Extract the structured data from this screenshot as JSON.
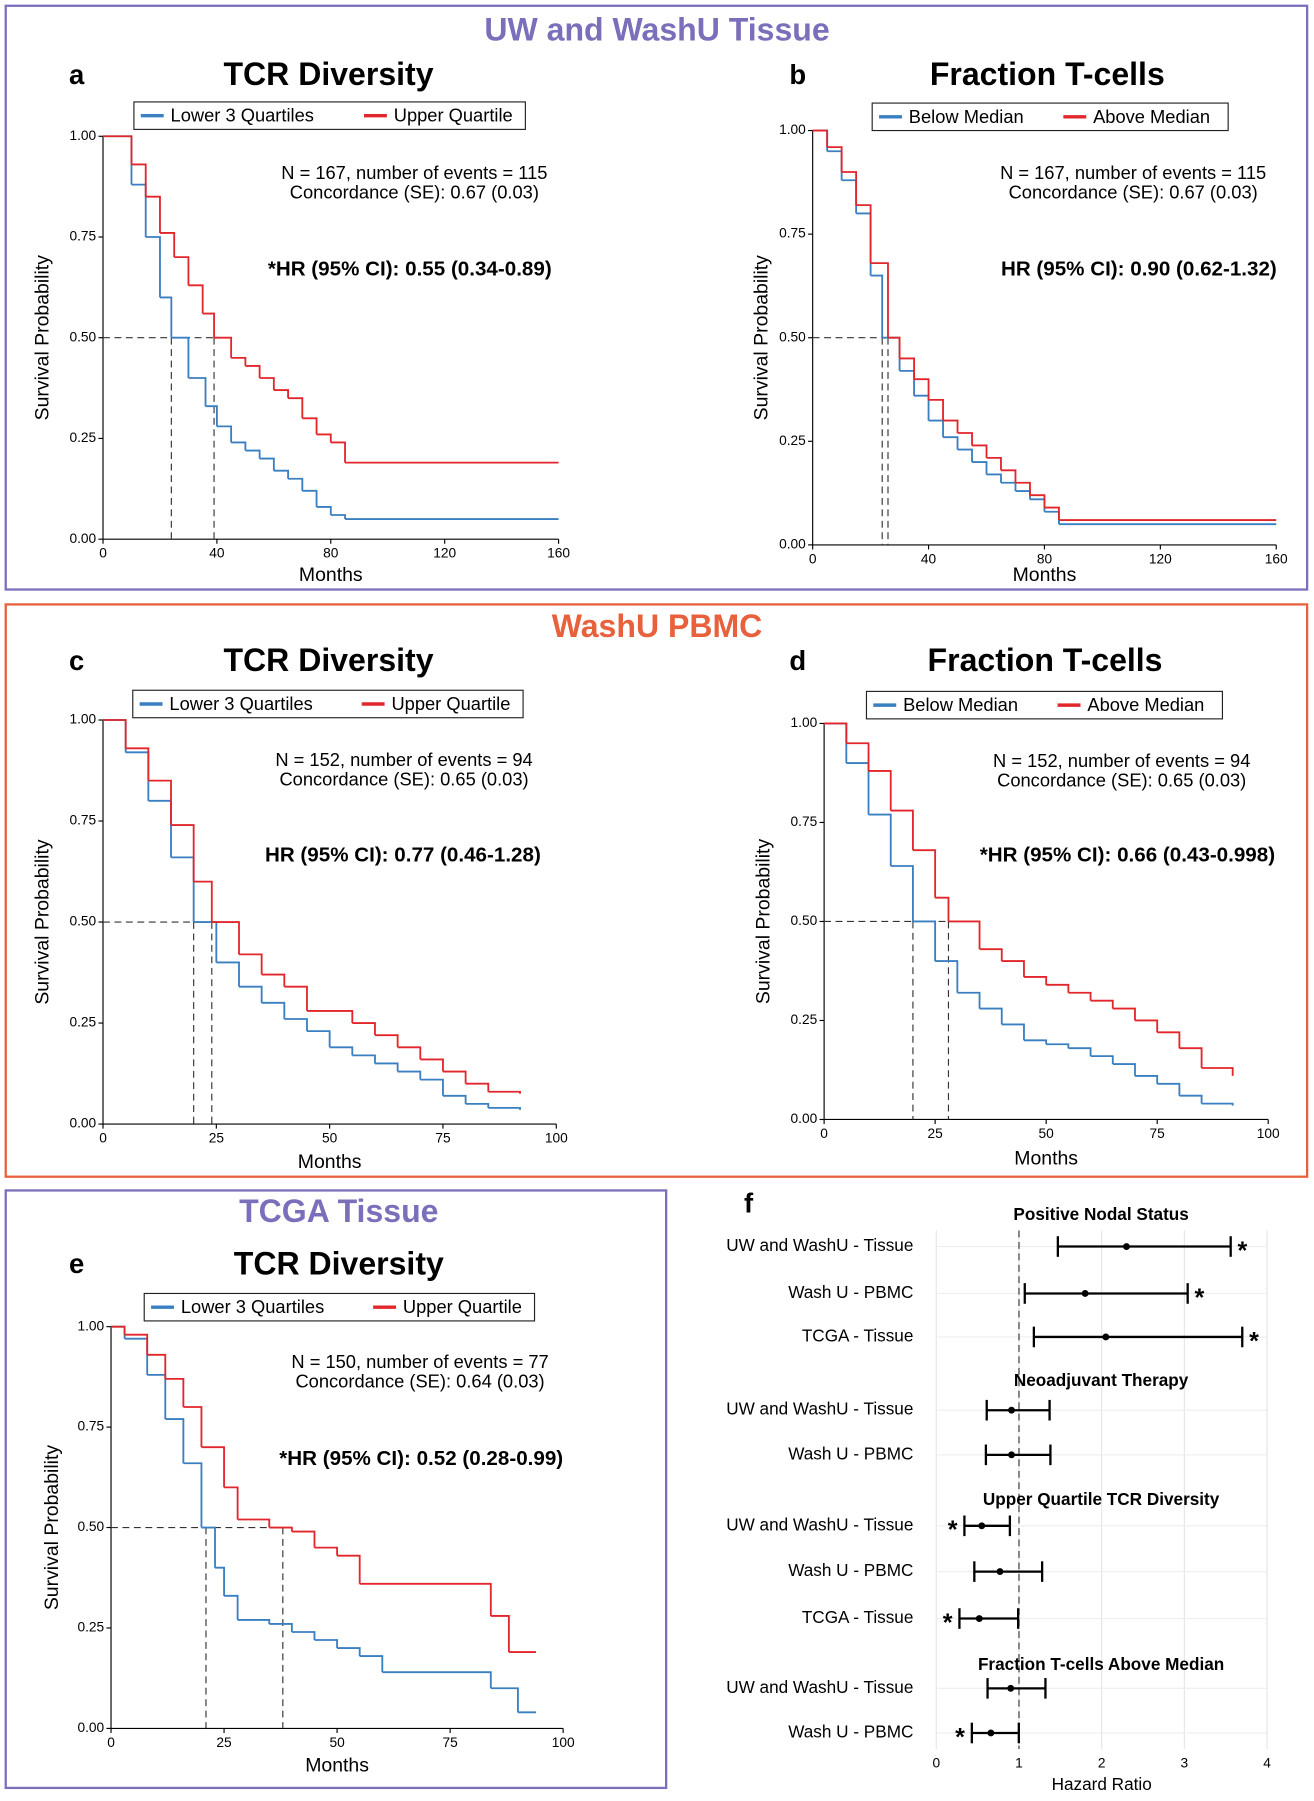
{
  "sections": [
    {
      "title": "UW and WashU Tissue",
      "color": "#7a6fba"
    },
    {
      "title": "WashU PBMC",
      "color": "#e8603c"
    },
    {
      "title": "TCGA Tissue",
      "color": "#7a6fba"
    }
  ],
  "chart_data": [
    {
      "type": "step",
      "panel": "a",
      "title": "TCR Diversity",
      "xlabel": "Months",
      "ylabel": "Survival Probability",
      "annotations": [
        "N = 167, number of events = 115",
        "Concordance (SE): 0.67 (0.03)"
      ],
      "hr_text": "*HR (95% CI): 0.55 (0.34-0.89)",
      "xlim": [
        0,
        160
      ],
      "ylim": [
        0,
        1
      ],
      "xticks": [
        0,
        40,
        80,
        120,
        160
      ],
      "yticks": [
        {
          "value": 0,
          "label": "0.00"
        },
        {
          "value": 0.25,
          "label": "0.25"
        },
        {
          "value": 0.5,
          "label": "0.50"
        },
        {
          "value": 0.75,
          "label": "0.75"
        },
        {
          "value": 1,
          "label": "1.00"
        }
      ],
      "median_level": 0.5,
      "series": [
        {
          "name": "Lower 3 Quartiles",
          "color": "#3a7fc1",
          "median": 24,
          "x": [
            0,
            10,
            15,
            20,
            24,
            30,
            36,
            40,
            45,
            50,
            55,
            60,
            65,
            70,
            75,
            80,
            85,
            160
          ],
          "values": [
            1,
            0.88,
            0.75,
            0.6,
            0.5,
            0.4,
            0.33,
            0.28,
            0.24,
            0.22,
            0.2,
            0.17,
            0.15,
            0.12,
            0.08,
            0.06,
            0.05,
            0.05
          ]
        },
        {
          "name": "Upper Quartile",
          "color": "#e3262b",
          "median": 39,
          "x": [
            0,
            10,
            15,
            20,
            25,
            30,
            35,
            39,
            45,
            50,
            55,
            60,
            65,
            70,
            75,
            80,
            85,
            160
          ],
          "values": [
            1,
            0.93,
            0.85,
            0.76,
            0.7,
            0.63,
            0.56,
            0.5,
            0.45,
            0.43,
            0.4,
            0.37,
            0.35,
            0.3,
            0.26,
            0.24,
            0.19,
            0.19
          ]
        }
      ]
    },
    {
      "type": "step",
      "panel": "b",
      "title": "Fraction T-cells",
      "xlabel": "Months",
      "ylabel": "Survival Probability",
      "annotations": [
        "N = 167, number of events = 115",
        "Concordance (SE): 0.67 (0.03)"
      ],
      "hr_text": "HR (95% CI): 0.90 (0.62-1.32)",
      "xlim": [
        0,
        160
      ],
      "ylim": [
        0,
        1
      ],
      "xticks": [
        0,
        40,
        80,
        120,
        160
      ],
      "yticks": [
        {
          "value": 0,
          "label": "0.00"
        },
        {
          "value": 0.25,
          "label": "0.25"
        },
        {
          "value": 0.5,
          "label": "0.50"
        },
        {
          "value": 0.75,
          "label": "0.75"
        },
        {
          "value": 1,
          "label": "1.00"
        }
      ],
      "median_level": 0.5,
      "series": [
        {
          "name": "Below Median",
          "color": "#3a7fc1",
          "median": 24,
          "x": [
            0,
            5,
            10,
            15,
            20,
            24,
            30,
            35,
            40,
            45,
            50,
            55,
            60,
            65,
            70,
            75,
            80,
            85,
            160
          ],
          "values": [
            1,
            0.95,
            0.88,
            0.8,
            0.65,
            0.5,
            0.42,
            0.36,
            0.3,
            0.26,
            0.23,
            0.2,
            0.17,
            0.15,
            0.13,
            0.11,
            0.08,
            0.05,
            0.05
          ]
        },
        {
          "name": "Above Median",
          "color": "#e3262b",
          "median": 26,
          "x": [
            0,
            5,
            10,
            15,
            20,
            26,
            30,
            35,
            40,
            45,
            50,
            55,
            60,
            65,
            70,
            75,
            80,
            85,
            160
          ],
          "values": [
            1,
            0.96,
            0.9,
            0.82,
            0.68,
            0.5,
            0.45,
            0.4,
            0.35,
            0.3,
            0.27,
            0.24,
            0.21,
            0.18,
            0.15,
            0.12,
            0.09,
            0.06,
            0.06
          ]
        }
      ]
    },
    {
      "type": "step",
      "panel": "c",
      "title": "TCR Diversity",
      "xlabel": "Months",
      "ylabel": "Survival Probability",
      "annotations": [
        "N = 152, number of events = 94",
        "Concordance (SE): 0.65 (0.03)"
      ],
      "hr_text": "HR (95% CI): 0.77 (0.46-1.28)",
      "xlim": [
        0,
        100
      ],
      "ylim": [
        0,
        1
      ],
      "xticks": [
        0,
        25,
        50,
        75,
        100
      ],
      "yticks": [
        {
          "value": 0,
          "label": "0.00"
        },
        {
          "value": 0.25,
          "label": "0.25"
        },
        {
          "value": 0.5,
          "label": "0.50"
        },
        {
          "value": 0.75,
          "label": "0.75"
        },
        {
          "value": 1,
          "label": "1.00"
        }
      ],
      "median_level": 0.5,
      "series": [
        {
          "name": "Lower 3 Quartiles",
          "color": "#3a7fc1",
          "median": 20,
          "x": [
            0,
            5,
            10,
            15,
            20,
            25,
            30,
            35,
            40,
            45,
            50,
            55,
            60,
            65,
            70,
            75,
            80,
            85,
            92
          ],
          "values": [
            1,
            0.92,
            0.8,
            0.66,
            0.5,
            0.4,
            0.34,
            0.3,
            0.26,
            0.23,
            0.19,
            0.17,
            0.15,
            0.13,
            0.11,
            0.07,
            0.05,
            0.04,
            0.035
          ]
        },
        {
          "name": "Upper Quartile",
          "color": "#e3262b",
          "median": 24,
          "x": [
            0,
            5,
            10,
            15,
            20,
            24,
            30,
            35,
            40,
            45,
            55,
            60,
            65,
            70,
            75,
            80,
            85,
            92
          ],
          "values": [
            1,
            0.93,
            0.85,
            0.74,
            0.6,
            0.5,
            0.42,
            0.37,
            0.34,
            0.28,
            0.25,
            0.22,
            0.19,
            0.16,
            0.13,
            0.1,
            0.08,
            0.075
          ]
        }
      ]
    },
    {
      "type": "step",
      "panel": "d",
      "title": "Fraction T-cells",
      "xlabel": "Months",
      "ylabel": "Survival Probability",
      "annotations": [
        "N = 152, number of events = 94",
        "Concordance (SE): 0.65 (0.03)"
      ],
      "hr_text": "*HR (95% CI): 0.66 (0.43-0.998)",
      "xlim": [
        0,
        100
      ],
      "ylim": [
        0,
        1
      ],
      "xticks": [
        0,
        25,
        50,
        75,
        100
      ],
      "yticks": [
        {
          "value": 0,
          "label": "0.00"
        },
        {
          "value": 0.25,
          "label": "0.25"
        },
        {
          "value": 0.5,
          "label": "0.50"
        },
        {
          "value": 0.75,
          "label": "0.75"
        },
        {
          "value": 1,
          "label": "1.00"
        }
      ],
      "median_level": 0.5,
      "series": [
        {
          "name": "Below Median",
          "color": "#3a7fc1",
          "median": 20,
          "x": [
            0,
            5,
            10,
            15,
            20,
            25,
            30,
            35,
            40,
            45,
            50,
            55,
            60,
            65,
            70,
            75,
            80,
            85,
            92
          ],
          "values": [
            1,
            0.9,
            0.77,
            0.64,
            0.5,
            0.4,
            0.32,
            0.28,
            0.24,
            0.2,
            0.19,
            0.18,
            0.16,
            0.14,
            0.11,
            0.09,
            0.06,
            0.04,
            0.035
          ]
        },
        {
          "name": "Above Median",
          "color": "#e3262b",
          "median": 28,
          "x": [
            0,
            5,
            10,
            15,
            20,
            25,
            28,
            35,
            40,
            45,
            50,
            55,
            60,
            65,
            70,
            75,
            80,
            85,
            92
          ],
          "values": [
            1,
            0.95,
            0.88,
            0.78,
            0.68,
            0.56,
            0.5,
            0.43,
            0.4,
            0.36,
            0.34,
            0.32,
            0.3,
            0.28,
            0.25,
            0.22,
            0.18,
            0.13,
            0.11
          ]
        }
      ]
    },
    {
      "type": "step",
      "panel": "e",
      "title": "TCR Diversity",
      "xlabel": "Months",
      "ylabel": "Survival Probability",
      "annotations": [
        "N = 150, number of events = 77",
        "Concordance (SE): 0.64 (0.03)"
      ],
      "hr_text": "*HR (95% CI): 0.52 (0.28-0.99)",
      "xlim": [
        0,
        100
      ],
      "ylim": [
        0,
        1
      ],
      "xticks": [
        0,
        25,
        50,
        75,
        100
      ],
      "yticks": [
        {
          "value": 0,
          "label": "0.00"
        },
        {
          "value": 0.25,
          "label": "0.25"
        },
        {
          "value": 0.5,
          "label": "0.50"
        },
        {
          "value": 0.75,
          "label": "0.75"
        },
        {
          "value": 1,
          "label": "1.00"
        }
      ],
      "median_level": 0.5,
      "series": [
        {
          "name": "Lower 3 Quartiles",
          "color": "#3a7fc1",
          "median": 21,
          "x": [
            0,
            3,
            8,
            12,
            16,
            20,
            23,
            25,
            28,
            35,
            40,
            45,
            50,
            55,
            60,
            84,
            90,
            94
          ],
          "values": [
            1,
            0.97,
            0.88,
            0.77,
            0.66,
            0.5,
            0.4,
            0.33,
            0.27,
            0.26,
            0.24,
            0.22,
            0.2,
            0.18,
            0.14,
            0.1,
            0.04,
            0.04
          ]
        },
        {
          "name": "Upper Quartile",
          "color": "#e3262b",
          "median": 38,
          "x": [
            0,
            3,
            8,
            12,
            16,
            20,
            25,
            28,
            35,
            40,
            45,
            50,
            55,
            84,
            88,
            94
          ],
          "values": [
            1,
            0.98,
            0.93,
            0.87,
            0.8,
            0.7,
            0.6,
            0.52,
            0.5,
            0.49,
            0.45,
            0.43,
            0.36,
            0.28,
            0.19,
            0.19
          ]
        }
      ]
    },
    {
      "type": "forest",
      "panel": "f",
      "xlabel": "Hazard Ratio",
      "xlim": [
        0,
        4
      ],
      "xticks": [
        0,
        1,
        2,
        3,
        4
      ],
      "reference": 1,
      "grid": true,
      "groups": [
        {
          "title": "Positive Nodal Status",
          "rows": [
            {
              "label": "UW and WashU - Tissue",
              "hr": 2.3,
              "lo": 1.47,
              "hi": 3.56,
              "sig": "*"
            },
            {
              "label": "Wash U - PBMC",
              "hr": 1.8,
              "lo": 1.07,
              "hi": 3.04,
              "sig": "*"
            },
            {
              "label": "TCGA - Tissue",
              "hr": 2.05,
              "lo": 1.18,
              "hi": 3.7,
              "sig": "*"
            }
          ]
        },
        {
          "title": "Neoadjuvant Therapy",
          "rows": [
            {
              "label": "UW and WashU - Tissue",
              "hr": 0.91,
              "lo": 0.61,
              "hi": 1.37
            },
            {
              "label": "Wash U - PBMC",
              "hr": 0.91,
              "lo": 0.6,
              "hi": 1.38
            }
          ]
        },
        {
          "title": "Upper Quartile TCR Diversity",
          "rows": [
            {
              "label": "UW and WashU - Tissue",
              "hr": 0.55,
              "lo": 0.34,
              "hi": 0.89,
              "sig": "*"
            },
            {
              "label": "Wash U - PBMC",
              "hr": 0.77,
              "lo": 0.46,
              "hi": 1.28
            },
            {
              "label": "TCGA - Tissue",
              "hr": 0.52,
              "lo": 0.28,
              "hi": 0.99,
              "sig": "*"
            }
          ]
        },
        {
          "title": "Fraction T-cells Above Median",
          "rows": [
            {
              "label": "UW and WashU - Tissue",
              "hr": 0.9,
              "lo": 0.62,
              "hi": 1.32
            },
            {
              "label": "Wash U - PBMC",
              "hr": 0.66,
              "lo": 0.43,
              "hi": 0.998,
              "sig": "*"
            }
          ]
        }
      ]
    }
  ]
}
